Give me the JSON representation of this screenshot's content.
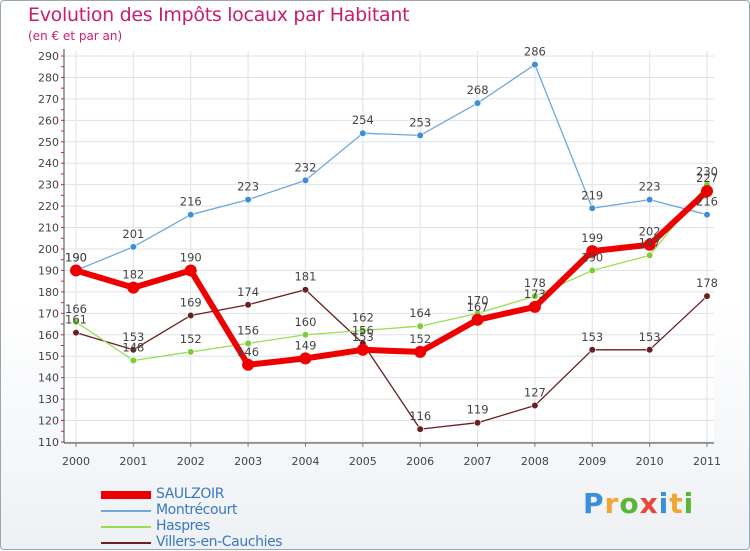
{
  "title": "Evolution des Impôts locaux par Habitant",
  "subtitle": "(en € et par an)",
  "logo_text": "Proxiti",
  "chart_data": {
    "type": "line",
    "title": "Evolution des Impôts locaux par Habitant",
    "ylabel": "(en € et par an)",
    "xlabel": "",
    "categories": [
      "2000",
      "2001",
      "2002",
      "2003",
      "2004",
      "2005",
      "2006",
      "2007",
      "2008",
      "2009",
      "2010",
      "2011"
    ],
    "ylim": [
      110,
      290
    ],
    "yticks": [
      110,
      120,
      130,
      140,
      150,
      160,
      170,
      180,
      190,
      200,
      210,
      220,
      230,
      240,
      250,
      260,
      270,
      280,
      290
    ],
    "grid": true,
    "series": [
      {
        "name": "SAULZOIR",
        "color": "#ee0000",
        "values": [
          190,
          182,
          190,
          146,
          149,
          153,
          152,
          167,
          173,
          199,
          202,
          227
        ]
      },
      {
        "name": "Montrécourt",
        "color": "#6fa8dc",
        "values": [
          190,
          201,
          216,
          223,
          232,
          254,
          253,
          268,
          286,
          219,
          223,
          216
        ]
      },
      {
        "name": "Haspres",
        "color": "#99dd55",
        "values": [
          166,
          148,
          152,
          156,
          160,
          162,
          164,
          170,
          178,
          190,
          197,
          230
        ]
      },
      {
        "name": "Villers-en-Cauchies",
        "color": "#6b1f1f",
        "values": [
          161,
          153,
          169,
          174,
          181,
          156,
          116,
          119,
          127,
          153,
          153,
          178
        ]
      }
    ],
    "data_labels": [
      {
        "series": 0,
        "text": [
          "190",
          "182",
          "190",
          "146",
          "149",
          "153",
          "152",
          "167",
          "173",
          "199",
          "202",
          "227"
        ]
      },
      {
        "series": 1,
        "text": [
          "190",
          "201",
          "216",
          "223",
          "232",
          "254",
          "253",
          "268",
          "286",
          "219",
          "223",
          "216"
        ]
      },
      {
        "series": 2,
        "text": [
          "166",
          "148",
          "152",
          "156",
          "160",
          "162",
          "164",
          "170",
          "178",
          "190",
          "197",
          "230"
        ]
      },
      {
        "series": 3,
        "text": [
          "161",
          "153",
          "169",
          "174",
          "181",
          "156",
          "116",
          "119",
          "127",
          "153",
          "153",
          "178"
        ]
      }
    ]
  }
}
